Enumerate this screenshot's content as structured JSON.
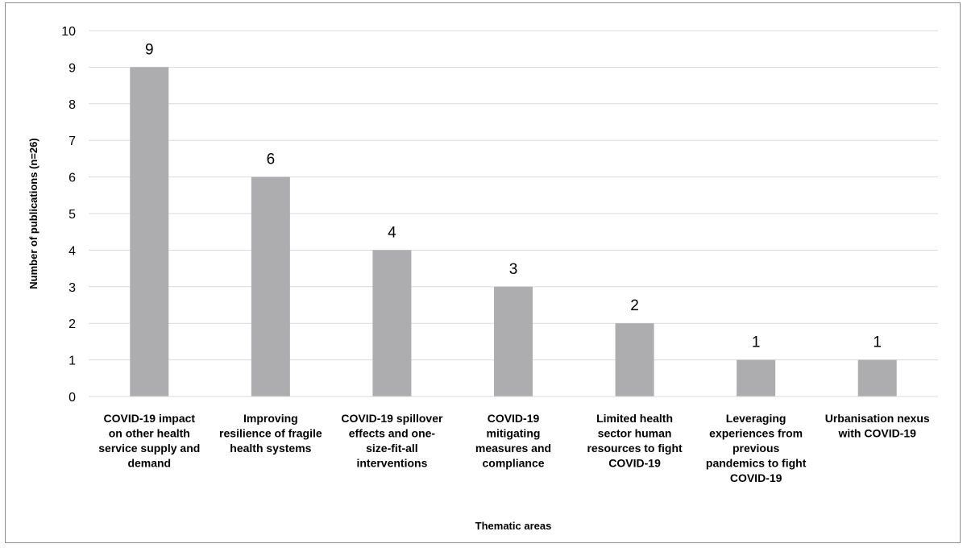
{
  "chart_data": {
    "type": "bar",
    "title": "",
    "xlabel": "Thematic areas",
    "ylabel": "Number of publications (n=26)",
    "ylim": [
      0,
      10
    ],
    "yticks": [
      0,
      1,
      2,
      3,
      4,
      5,
      6,
      7,
      8,
      9,
      10
    ],
    "grid": true,
    "legend": "none",
    "bar_color": "#adadb0",
    "categories": [
      [
        "COVID-19 impact",
        "on other health",
        "service supply and",
        "demand"
      ],
      [
        "Improving",
        "resilience of fragile",
        "health systems"
      ],
      [
        "COVID-19 spillover",
        "effects and one-",
        "size-fit-all",
        "interventions"
      ],
      [
        "COVID-19",
        "mitigating",
        "measures and",
        "compliance"
      ],
      [
        "Limited health",
        "sector human",
        "resources to fight",
        "COVID-19"
      ],
      [
        "Leveraging",
        "experiences from",
        "previous",
        "pandemics to fight",
        "COVID-19"
      ],
      [
        "Urbanisation nexus",
        "with COVID-19"
      ]
    ],
    "values": [
      9,
      6,
      4,
      3,
      2,
      1,
      1
    ],
    "data_labels": [
      "9",
      "6",
      "4",
      "3",
      "2",
      "1",
      "1"
    ]
  }
}
